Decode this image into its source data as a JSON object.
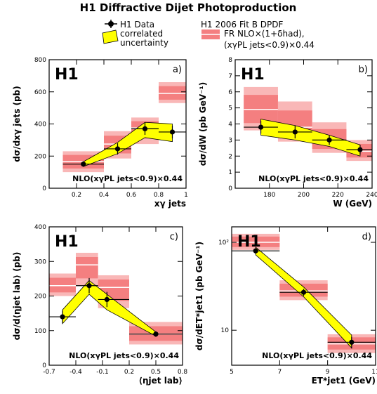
{
  "title": "H1 Diffractive Dijet Photoproduction",
  "legend": {
    "data": "H1 Data",
    "uncertainty_line1": "correlated",
    "uncertainty_line2": "uncertainty",
    "fit": "H1 2006 Fit B DPDF",
    "nlo_line1": "FR NLO×(1+δhad),",
    "nlo_line2": "(xγPL jets<0.9)×0.44"
  },
  "colors": {
    "nlo_band": "#f47f80",
    "nlo_band_light": "#f9b7b7",
    "nlo_center": "#ffffff",
    "unc_band": "#ffff00",
    "data": "#000000"
  },
  "chart_data": [
    {
      "id": "a",
      "type": "bar",
      "panel_label": "a)",
      "logo": "H1",
      "note": "NLO(xγPL jets<0.9)×0.44",
      "xlabel": "xγ jets",
      "ylabel": "dσ/dxγ jets (pb)",
      "xlim": [
        0,
        1
      ],
      "ylim": [
        0,
        800
      ],
      "ylog": false,
      "xticks": [
        0.2,
        0.4,
        0.6,
        0.8,
        1
      ],
      "xtick_labels": [
        "0.2",
        "0.4",
        "0.6",
        "0.8",
        "1"
      ],
      "yticks": [
        0,
        200,
        400,
        600,
        800
      ],
      "ytick_labels": [
        "0",
        "200",
        "400",
        "600",
        "800"
      ],
      "bins": [
        {
          "lo": 0.1,
          "hi": 0.4,
          "nlo": 165,
          "nlo_lo": 100,
          "nlo_hi": 230,
          "data": 150,
          "err": 15,
          "unc": [
            135,
            165
          ]
        },
        {
          "lo": 0.4,
          "hi": 0.6,
          "nlo": 275,
          "nlo_lo": 185,
          "nlo_hi": 355,
          "data": 245,
          "err": 35,
          "unc": [
            215,
            285
          ]
        },
        {
          "lo": 0.6,
          "hi": 0.8,
          "nlo": 375,
          "nlo_lo": 275,
          "nlo_hi": 440,
          "data": 370,
          "err": 38,
          "unc": [
            315,
            410
          ]
        },
        {
          "lo": 0.8,
          "hi": 1.0,
          "nlo": 590,
          "nlo_lo": 530,
          "nlo_hi": 660,
          "data": 350,
          "err": 40,
          "unc": [
            290,
            400
          ]
        }
      ],
      "data_x": [
        0.25,
        0.5,
        0.7,
        0.9
      ]
    },
    {
      "id": "b",
      "type": "bar",
      "panel_label": "b)",
      "logo": "H1",
      "note": "NLO(xγPL jets<0.9)×0.44",
      "xlabel": "W (GeV)",
      "ylabel": "dσ/dW (pb GeV⁻¹)",
      "xlim": [
        160,
        240
      ],
      "ylim": [
        0,
        8
      ],
      "ylog": false,
      "xticks": [
        180,
        200,
        220,
        240
      ],
      "xtick_labels": [
        "180",
        "200",
        "220",
        "240"
      ],
      "yticks": [
        0,
        1,
        2,
        3,
        4,
        5,
        6,
        7,
        8
      ],
      "ytick_labels": [
        "0",
        "1",
        "2",
        "3",
        "4",
        "5",
        "6",
        "7",
        "8"
      ],
      "bins": [
        {
          "lo": 165,
          "hi": 185,
          "nlo": 4.9,
          "nlo_lo": 3.6,
          "nlo_hi": 6.3,
          "data": 3.8,
          "err": 0.4,
          "unc": [
            3.3,
            4.3
          ]
        },
        {
          "lo": 185,
          "hi": 205,
          "nlo": 3.8,
          "nlo_lo": 2.9,
          "nlo_hi": 5.4,
          "data": 3.5,
          "err": 0.4,
          "unc": [
            3.0,
            3.9
          ]
        },
        {
          "lo": 205,
          "hi": 225,
          "nlo": 2.9,
          "nlo_lo": 2.2,
          "nlo_hi": 4.1,
          "data": 3.0,
          "err": 0.3,
          "unc": [
            2.6,
            3.3
          ]
        },
        {
          "lo": 225,
          "hi": 240,
          "nlo": 2.3,
          "nlo_lo": 1.7,
          "nlo_hi": 3.0,
          "data": 2.4,
          "err": 0.3,
          "unc": [
            2.0,
            2.7
          ]
        }
      ],
      "data_x": [
        175,
        195,
        215,
        233
      ]
    },
    {
      "id": "c",
      "type": "bar",
      "panel_label": "c)",
      "logo": "H1",
      "note": "NLO(xγPL jets<0.9)×0.44",
      "xlabel": "⟨ηjet lab⟩",
      "ylabel": "dσ/d⟨ηjet lab⟩ (pb)",
      "xlim": [
        -0.7,
        0.8
      ],
      "ylim": [
        0,
        400
      ],
      "ylog": false,
      "xticks": [
        -0.7,
        -0.4,
        -0.1,
        0.2,
        0.5,
        0.8
      ],
      "xtick_labels": [
        "-0.7",
        "-0.4",
        "-0.1",
        "0.2",
        "0.5",
        "0.8"
      ],
      "yticks": [
        0,
        100,
        200,
        300,
        400
      ],
      "ytick_labels": [
        "0",
        "100",
        "200",
        "300",
        "400"
      ],
      "bins": [
        {
          "lo": -0.7,
          "hi": -0.4,
          "nlo": 230,
          "nlo_lo": 200,
          "nlo_hi": 265,
          "data": 140,
          "err": 18,
          "unc": [
            120,
            160
          ]
        },
        {
          "lo": -0.4,
          "hi": -0.15,
          "nlo": 290,
          "nlo_lo": 230,
          "nlo_hi": 325,
          "data": 230,
          "err": 22,
          "unc": [
            205,
            245
          ]
        },
        {
          "lo": -0.15,
          "hi": 0.2,
          "nlo": 225,
          "nlo_lo": 165,
          "nlo_hi": 260,
          "data": 190,
          "err": 22,
          "unc": [
            160,
            205
          ]
        },
        {
          "lo": 0.2,
          "hi": 0.8,
          "nlo": 90,
          "nlo_lo": 60,
          "nlo_hi": 125,
          "data": 90,
          "err": 8,
          "unc": [
            84,
            96
          ]
        }
      ],
      "data_x": [
        -0.55,
        -0.25,
        -0.05,
        0.5
      ]
    },
    {
      "id": "d",
      "type": "bar",
      "panel_label": "d)",
      "logo": "H1",
      "note": "NLO(xγPL jets<0.9)×0.44",
      "xlabel": "ET*jet1 (GeV)",
      "ylabel": "dσ/dET*jet1 (pb GeV⁻¹)",
      "xlim": [
        5,
        11
      ],
      "ylim": [
        4,
        150
      ],
      "ylog": true,
      "xticks": [
        5,
        7,
        9,
        11
      ],
      "xtick_labels": [
        "5",
        "7",
        "9",
        "11"
      ],
      "yticks": [
        10,
        100
      ],
      "ytick_labels": [
        "10",
        "10²"
      ],
      "bins": [
        {
          "lo": 5,
          "hi": 7,
          "nlo": 100,
          "nlo_lo": 82,
          "nlo_hi": 125,
          "data": 80,
          "err": 6,
          "unc": [
            72,
            88
          ]
        },
        {
          "lo": 7,
          "hi": 9,
          "nlo": 28,
          "nlo_lo": 22,
          "nlo_hi": 37,
          "data": 27,
          "err": 2.5,
          "unc": [
            24,
            31
          ]
        },
        {
          "lo": 9,
          "hi": 11,
          "nlo": 7,
          "nlo_lo": 5.5,
          "nlo_hi": 9,
          "data": 7.3,
          "err": 1.1,
          "unc": [
            6.3,
            8.8
          ]
        }
      ],
      "data_x": [
        6,
        8,
        10
      ]
    }
  ]
}
